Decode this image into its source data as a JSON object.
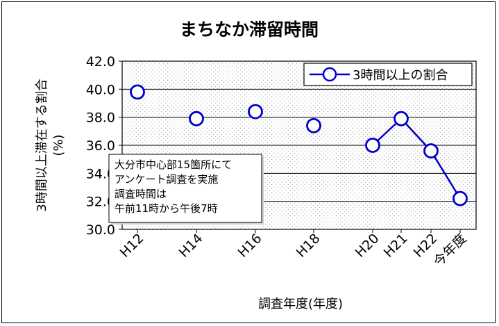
{
  "chart_data": {
    "type": "line",
    "title": "まちなか滞留時間",
    "xlabel": "調査年度(年度)",
    "ylabel": "3時間以上滞在する割合",
    "ylabel_unit": "(%)",
    "ylim": [
      30.0,
      42.0
    ],
    "yticks": [
      "30.0",
      "32.0",
      "34.0",
      "36.0",
      "38.0",
      "40.0",
      "42.0"
    ],
    "x_tick_labels": [
      "H12",
      "H14",
      "H16",
      "H18",
      "H20",
      "H21",
      "H22",
      "今年度"
    ],
    "grid": true,
    "legend_position": "top-right",
    "series": [
      {
        "name": "3時間以上の割合",
        "color": "#0000cc",
        "points": [
          {
            "x": "H12",
            "y": 39.8
          },
          {
            "x": "H14",
            "y": 37.9
          },
          {
            "x": "H16",
            "y": 38.4
          },
          {
            "x": "H18",
            "y": 37.4
          },
          {
            "x": "H20",
            "y": 36.0
          },
          {
            "x": "H21",
            "y": 37.9
          },
          {
            "x": "H22",
            "y": 35.6
          },
          {
            "x": "今年度",
            "y": 32.2
          }
        ],
        "connected_from": "H20"
      }
    ],
    "annotation": [
      "大分市中心部15箇所にて",
      "アンケート調査を実施",
      "調査時間は",
      "午前11時から午後7時"
    ]
  }
}
